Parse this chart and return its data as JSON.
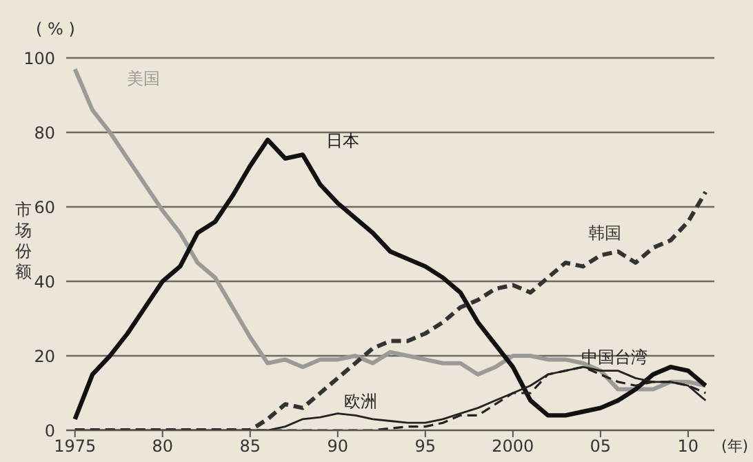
{
  "chart_data": {
    "type": "line",
    "ylabel": "市场份额",
    "annotations": [
      "( % )",
      "(年)"
    ],
    "x": [
      1975,
      1976,
      1977,
      1978,
      1979,
      1980,
      1981,
      1982,
      1983,
      1984,
      1985,
      1986,
      1987,
      1988,
      1989,
      1990,
      1991,
      1992,
      1993,
      1994,
      1995,
      1996,
      1997,
      1998,
      1999,
      2000,
      2001,
      2002,
      2003,
      2004,
      2005,
      2006,
      2007,
      2008,
      2009,
      2010,
      2011
    ],
    "xlim": [
      1974.5,
      2011.5
    ],
    "xticks": [
      1975,
      {
        "value": 1980,
        "label": "80"
      },
      {
        "value": 1985,
        "label": "85"
      },
      {
        "value": 1990,
        "label": "90"
      },
      {
        "value": 1995,
        "label": "95"
      },
      2000,
      {
        "value": 2005,
        "label": "05"
      },
      {
        "value": 2010,
        "label": "10"
      }
    ],
    "ylim": [
      0,
      100
    ],
    "yticks": [
      0,
      20,
      40,
      60,
      80,
      100
    ],
    "grid": "y",
    "legend": false,
    "marker": "none",
    "series": [
      {
        "name": "美国",
        "color": "#9a9a96",
        "line_style": "solid",
        "values": [
          97,
          86,
          80,
          73,
          66,
          59,
          53,
          45,
          41,
          33,
          25,
          18,
          19,
          17,
          19,
          19,
          20,
          18,
          21,
          20,
          19,
          18,
          18,
          15,
          17,
          20,
          20,
          19,
          19,
          18,
          16,
          11,
          11,
          11,
          13,
          13,
          12
        ]
      },
      {
        "name": "日本",
        "color": "#111111",
        "line_style": "solid",
        "values": [
          3,
          15,
          20,
          26,
          33,
          40,
          44,
          53,
          56,
          63,
          71,
          78,
          73,
          74,
          66,
          61,
          57,
          53,
          48,
          46,
          44,
          41,
          37,
          29,
          23,
          17,
          8,
          4,
          4,
          5,
          6,
          8,
          11,
          15,
          17,
          16,
          12
        ]
      },
      {
        "name": "韩国",
        "color": "#333333",
        "line_style": "dashed",
        "values": [
          0,
          0,
          0,
          0,
          0,
          0,
          0,
          0,
          0,
          0,
          0,
          3,
          7,
          6,
          10,
          14,
          18,
          22,
          24,
          24,
          26,
          29,
          33,
          35,
          38,
          39,
          37,
          41,
          45,
          44,
          47,
          48,
          45,
          49,
          51,
          56,
          64
        ]
      },
      {
        "name": "欧洲",
        "color": "#222222",
        "line_style": "solid",
        "values": [
          0,
          0,
          0,
          0,
          0,
          0,
          0,
          0,
          0,
          0,
          0,
          0,
          1,
          3,
          3.5,
          4.5,
          4,
          3,
          2.5,
          2,
          2,
          3,
          4.5,
          6,
          8,
          10,
          12,
          15,
          16,
          17,
          16,
          16,
          14,
          13,
          13,
          12,
          8
        ]
      },
      {
        "name": "中国台湾",
        "color": "#222222",
        "line_style": "dashed",
        "values": [
          0,
          0,
          0,
          0,
          0,
          0,
          0,
          0,
          0,
          0,
          0,
          0,
          0,
          0,
          0,
          0,
          0,
          0,
          0.5,
          1,
          1,
          2,
          4,
          4,
          7,
          10,
          10,
          15,
          16,
          17,
          15,
          13,
          12,
          13,
          13,
          12,
          10
        ]
      }
    ]
  }
}
